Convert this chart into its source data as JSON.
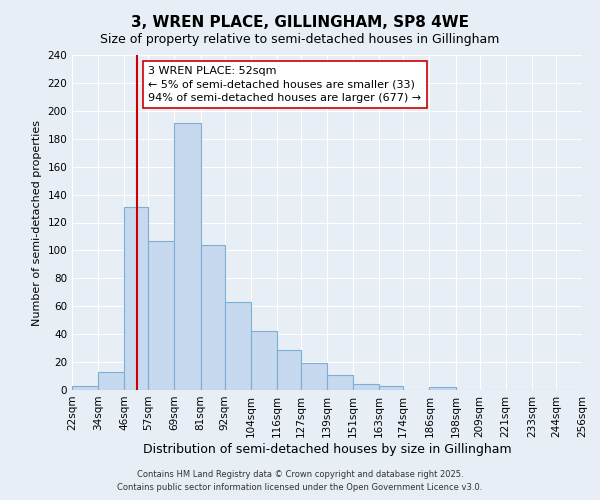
{
  "title": "3, WREN PLACE, GILLINGHAM, SP8 4WE",
  "subtitle": "Size of property relative to semi-detached houses in Gillingham",
  "xlabel": "Distribution of semi-detached houses by size in Gillingham",
  "ylabel": "Number of semi-detached properties",
  "footer_line1": "Contains HM Land Registry data © Crown copyright and database right 2025.",
  "footer_line2": "Contains public sector information licensed under the Open Government Licence v3.0.",
  "bin_edges": [
    22,
    34,
    46,
    57,
    69,
    81,
    92,
    104,
    116,
    127,
    139,
    151,
    163,
    174,
    186,
    198,
    209,
    221,
    233,
    244,
    256
  ],
  "bar_heights": [
    3,
    13,
    131,
    107,
    191,
    104,
    63,
    42,
    29,
    19,
    11,
    4,
    3,
    0,
    2,
    0,
    0,
    0,
    0,
    0
  ],
  "bar_color": "#c6d9ee",
  "bar_edge_color": "#7bafd4",
  "property_size": 52,
  "vline_color": "#cc0000",
  "annotation_title": "3 WREN PLACE: 52sqm",
  "annotation_line1": "← 5% of semi-detached houses are smaller (33)",
  "annotation_line2": "94% of semi-detached houses are larger (677) →",
  "annotation_box_color": "#ffffff",
  "annotation_border_color": "#cc0000",
  "ylim": [
    0,
    240
  ],
  "yticks": [
    0,
    20,
    40,
    60,
    80,
    100,
    120,
    140,
    160,
    180,
    200,
    220,
    240
  ],
  "background_color": "#e8eef5",
  "grid_color": "#ffffff",
  "title_fontsize": 11,
  "subtitle_fontsize": 9,
  "xlabel_fontsize": 9,
  "ylabel_fontsize": 8,
  "tick_fontsize": 7.5,
  "annotation_fontsize": 8,
  "footer_fontsize": 6
}
